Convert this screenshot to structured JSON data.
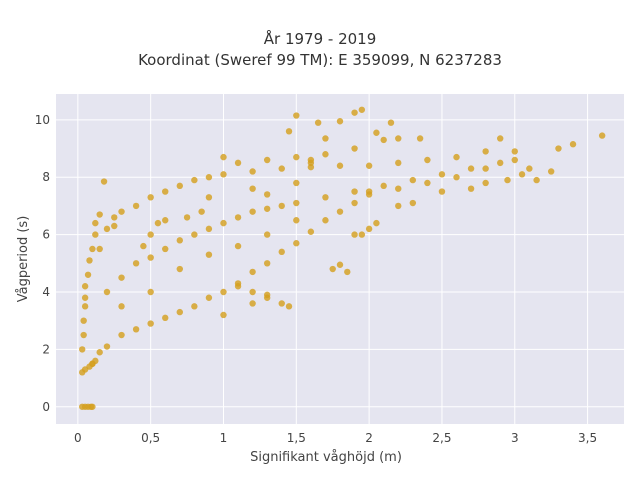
{
  "chart_data": {
    "type": "scatter",
    "title_lines": [
      "År 1979 - 2019",
      "Koordinat (Sweref 99 TM): E 359099, N 6237283"
    ],
    "xlabel": "Signifikant våghöjd (m)",
    "ylabel": "Vågperiod (s)",
    "xlim": [
      -0.15,
      3.75
    ],
    "ylim": [
      -0.6,
      10.9
    ],
    "xticks": [
      0,
      0.5,
      1,
      1.5,
      2,
      2.5,
      3,
      3.5
    ],
    "xtick_labels": [
      "0",
      "0,5",
      "1",
      "1,5",
      "2",
      "2,5",
      "3",
      "3,5"
    ],
    "yticks": [
      0,
      2,
      4,
      6,
      8,
      10
    ],
    "ytick_labels": [
      "0",
      "2",
      "4",
      "6",
      "8",
      "10"
    ],
    "grid": true,
    "legend": "none",
    "marker_color": "#D4A020",
    "background_color": "#E5E5F0",
    "series": [
      {
        "name": "",
        "points": [
          [
            0.03,
            0.0
          ],
          [
            0.05,
            0.0
          ],
          [
            0.07,
            0.0
          ],
          [
            0.09,
            0.0
          ],
          [
            0.1,
            0.0
          ],
          [
            0.03,
            1.2
          ],
          [
            0.05,
            1.3
          ],
          [
            0.08,
            1.4
          ],
          [
            0.1,
            1.5
          ],
          [
            0.12,
            1.6
          ],
          [
            0.03,
            2.0
          ],
          [
            0.04,
            2.5
          ],
          [
            0.04,
            3.0
          ],
          [
            0.05,
            3.5
          ],
          [
            0.05,
            3.8
          ],
          [
            0.05,
            4.2
          ],
          [
            0.07,
            4.6
          ],
          [
            0.08,
            5.1
          ],
          [
            0.1,
            5.5
          ],
          [
            0.12,
            6.0
          ],
          [
            0.12,
            6.4
          ],
          [
            0.1,
            1.5
          ],
          [
            0.15,
            1.9
          ],
          [
            0.2,
            2.1
          ],
          [
            0.3,
            2.5
          ],
          [
            0.4,
            2.7
          ],
          [
            0.5,
            2.9
          ],
          [
            0.6,
            3.1
          ],
          [
            0.7,
            3.3
          ],
          [
            0.8,
            3.5
          ],
          [
            0.9,
            3.8
          ],
          [
            1.0,
            4.0
          ],
          [
            1.1,
            4.3
          ],
          [
            1.2,
            4.7
          ],
          [
            1.3,
            5.0
          ],
          [
            1.4,
            5.4
          ],
          [
            1.5,
            5.7
          ],
          [
            1.6,
            6.1
          ],
          [
            1.7,
            6.5
          ],
          [
            1.8,
            6.8
          ],
          [
            1.9,
            7.1
          ],
          [
            2.0,
            7.4
          ],
          [
            2.2,
            7.6
          ],
          [
            2.4,
            7.8
          ],
          [
            2.6,
            8.0
          ],
          [
            2.8,
            8.3
          ],
          [
            3.0,
            8.6
          ],
          [
            0.15,
            5.5
          ],
          [
            0.2,
            6.2
          ],
          [
            0.25,
            6.6
          ],
          [
            0.3,
            6.8
          ],
          [
            0.4,
            7.0
          ],
          [
            0.5,
            7.3
          ],
          [
            0.6,
            7.5
          ],
          [
            0.7,
            7.7
          ],
          [
            0.8,
            7.9
          ],
          [
            0.9,
            8.0
          ],
          [
            1.0,
            8.1
          ],
          [
            1.2,
            8.2
          ],
          [
            1.4,
            8.3
          ],
          [
            1.6,
            8.35
          ],
          [
            1.8,
            8.4
          ],
          [
            2.0,
            8.4
          ],
          [
            2.2,
            8.5
          ],
          [
            2.4,
            8.6
          ],
          [
            2.6,
            8.7
          ],
          [
            2.8,
            8.9
          ],
          [
            3.0,
            8.9
          ],
          [
            0.2,
            4.0
          ],
          [
            0.3,
            4.5
          ],
          [
            0.4,
            5.0
          ],
          [
            0.5,
            5.2
          ],
          [
            0.6,
            5.5
          ],
          [
            0.7,
            5.8
          ],
          [
            0.8,
            6.0
          ],
          [
            0.9,
            6.2
          ],
          [
            1.0,
            6.4
          ],
          [
            1.1,
            6.6
          ],
          [
            1.2,
            6.8
          ],
          [
            1.3,
            6.9
          ],
          [
            1.4,
            7.0
          ],
          [
            1.5,
            7.1
          ],
          [
            1.7,
            7.3
          ],
          [
            1.9,
            7.5
          ],
          [
            2.1,
            7.7
          ],
          [
            2.3,
            7.9
          ],
          [
            2.5,
            8.1
          ],
          [
            2.7,
            8.3
          ],
          [
            2.9,
            8.5
          ],
          [
            0.3,
            3.5
          ],
          [
            0.5,
            4.0
          ],
          [
            0.7,
            4.8
          ],
          [
            0.9,
            5.3
          ],
          [
            1.1,
            5.6
          ],
          [
            1.3,
            6.0
          ],
          [
            1.5,
            6.5
          ],
          [
            0.6,
            6.5
          ],
          [
            0.9,
            7.3
          ],
          [
            1.2,
            7.6
          ],
          [
            1.5,
            7.8
          ],
          [
            1.3,
            7.4
          ],
          [
            0.18,
            7.85
          ],
          [
            0.15,
            6.7
          ],
          [
            0.25,
            6.3
          ],
          [
            1.0,
            8.7
          ],
          [
            1.1,
            8.5
          ],
          [
            1.3,
            8.6
          ],
          [
            1.5,
            8.7
          ],
          [
            1.6,
            8.6
          ],
          [
            1.7,
            8.8
          ],
          [
            1.6,
            8.5
          ],
          [
            1.9,
            9.0
          ],
          [
            1.45,
            9.6
          ],
          [
            1.5,
            10.15
          ],
          [
            1.65,
            9.9
          ],
          [
            1.7,
            9.35
          ],
          [
            1.8,
            9.95
          ],
          [
            1.9,
            10.25
          ],
          [
            1.95,
            10.35
          ],
          [
            2.05,
            9.55
          ],
          [
            2.1,
            9.3
          ],
          [
            2.2,
            9.35
          ],
          [
            2.15,
            9.9
          ],
          [
            2.35,
            9.35
          ],
          [
            2.9,
            9.35
          ],
          [
            3.4,
            9.15
          ],
          [
            3.3,
            9.0
          ],
          [
            3.6,
            9.45
          ],
          [
            1.1,
            4.2
          ],
          [
            1.2,
            4.0
          ],
          [
            1.3,
            3.8
          ],
          [
            1.4,
            3.6
          ],
          [
            1.45,
            3.5
          ],
          [
            1.2,
            3.6
          ],
          [
            1.0,
            3.2
          ],
          [
            1.3,
            3.9
          ],
          [
            1.75,
            4.8
          ],
          [
            1.8,
            4.95
          ],
          [
            1.85,
            4.7
          ],
          [
            1.95,
            6.0
          ],
          [
            2.05,
            6.4
          ],
          [
            2.0,
            6.2
          ],
          [
            1.9,
            6.0
          ],
          [
            2.2,
            7.0
          ],
          [
            2.3,
            7.1
          ],
          [
            2.0,
            7.5
          ],
          [
            2.5,
            7.5
          ],
          [
            2.7,
            7.6
          ],
          [
            2.8,
            7.8
          ],
          [
            2.95,
            7.9
          ],
          [
            3.15,
            7.9
          ],
          [
            3.25,
            8.2
          ],
          [
            3.05,
            8.1
          ],
          [
            3.1,
            8.3
          ],
          [
            0.5,
            6.0
          ],
          [
            0.55,
            6.4
          ],
          [
            0.45,
            5.6
          ],
          [
            0.75,
            6.6
          ],
          [
            0.85,
            6.8
          ]
        ]
      }
    ]
  }
}
